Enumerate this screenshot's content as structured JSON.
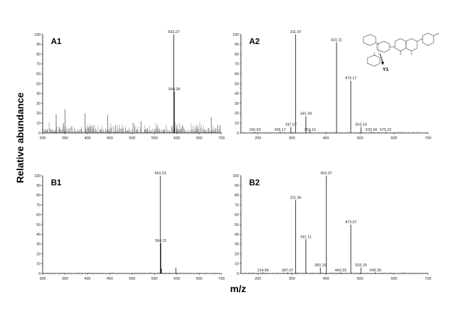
{
  "figure": {
    "ylabel": "Relative abundance",
    "xlabel": "m/z"
  },
  "chart_data": [
    {
      "type": "bar",
      "id": "A1",
      "xlim": [
        300,
        700
      ],
      "ylim": [
        0,
        100
      ],
      "xticks": [
        300,
        350,
        400,
        450,
        500,
        550,
        600,
        650,
        700
      ],
      "yticks": [
        0,
        10,
        20,
        30,
        40,
        50,
        60,
        70,
        80,
        90,
        100
      ],
      "peaks": [
        {
          "mz": 593.27,
          "intensity": 100,
          "label": "593.27"
        },
        {
          "mz": 594.34,
          "intensity": 42,
          "label": "594.34"
        }
      ],
      "noise": {
        "range": [
          300,
          700
        ],
        "baseline_max": 12,
        "tallest": [
          {
            "mz": 350,
            "intensity": 24
          },
          {
            "mz": 395,
            "intensity": 20
          },
          {
            "mz": 445,
            "intensity": 18
          },
          {
            "mz": 330,
            "intensity": 19
          },
          {
            "mz": 520,
            "intensity": 12
          },
          {
            "mz": 677,
            "intensity": 16
          },
          {
            "mz": 600,
            "intensity": 8
          }
        ]
      }
    },
    {
      "type": "bar",
      "id": "A2",
      "xlim": [
        150,
        700
      ],
      "ylim": [
        0,
        100
      ],
      "xticks": [
        200,
        300,
        400,
        500,
        600,
        700
      ],
      "yticks": [
        0,
        10,
        20,
        30,
        40,
        50,
        60,
        70,
        80,
        90,
        100
      ],
      "peaks": [
        {
          "mz": 190.93,
          "intensity": 1,
          "label": "190.93"
        },
        {
          "mz": 265.17,
          "intensity": 1,
          "label": "265.17"
        },
        {
          "mz": 297.07,
          "intensity": 6,
          "label": "297.07"
        },
        {
          "mz": 311.07,
          "intensity": 100,
          "label": "311.07"
        },
        {
          "mz": 341.09,
          "intensity": 17,
          "label": "341.09"
        },
        {
          "mz": 353.1,
          "intensity": 3,
          "label": "353.10"
        },
        {
          "mz": 431.11,
          "intensity": 92,
          "label": "431.11"
        },
        {
          "mz": 473.17,
          "intensity": 53,
          "label": "473.17"
        },
        {
          "mz": 503.19,
          "intensity": 6,
          "label": "503.19"
        },
        {
          "mz": 533.34,
          "intensity": 1,
          "label": "533.34"
        },
        {
          "mz": 575.22,
          "intensity": 1,
          "label": "575.22"
        }
      ],
      "structure_label": "Y1"
    },
    {
      "type": "bar",
      "id": "B1",
      "xlim": [
        300,
        700
      ],
      "ylim": [
        0,
        100
      ],
      "xticks": [
        300,
        350,
        400,
        450,
        500,
        550,
        600,
        650,
        700
      ],
      "yticks": [
        0,
        10,
        20,
        30,
        40,
        50,
        60,
        70,
        80,
        90,
        100
      ],
      "peaks": [
        {
          "mz": 563.23,
          "intensity": 100,
          "label": "563.23"
        },
        {
          "mz": 564.21,
          "intensity": 31,
          "label": "564.21"
        },
        {
          "mz": 598,
          "intensity": 6,
          "label": ""
        },
        {
          "mz": 565.5,
          "intensity": 5,
          "label": ""
        }
      ]
    },
    {
      "type": "bar",
      "id": "B2",
      "xlim": [
        150,
        700
      ],
      "ylim": [
        0,
        100
      ],
      "xticks": [
        200,
        300,
        400,
        500,
        600,
        700
      ],
      "yticks": [
        0,
        10,
        20,
        30,
        40,
        50,
        60,
        70,
        80,
        90,
        100
      ],
      "peaks": [
        {
          "mz": 214.96,
          "intensity": 1,
          "label": "214.96"
        },
        {
          "mz": 287.07,
          "intensity": 1,
          "label": "287.07"
        },
        {
          "mz": 311.06,
          "intensity": 75,
          "label": "311.06"
        },
        {
          "mz": 341.11,
          "intensity": 35,
          "label": "341.11"
        },
        {
          "mz": 383.16,
          "intensity": 6,
          "label": "383.16"
        },
        {
          "mz": 401.07,
          "intensity": 100,
          "label": "401.07"
        },
        {
          "mz": 443.25,
          "intensity": 1,
          "label": "443.25"
        },
        {
          "mz": 473.27,
          "intensity": 50,
          "label": "473.27"
        },
        {
          "mz": 503.26,
          "intensity": 6,
          "label": "503.26"
        },
        {
          "mz": 545.3,
          "intensity": 1,
          "label": "545.30"
        }
      ]
    }
  ]
}
